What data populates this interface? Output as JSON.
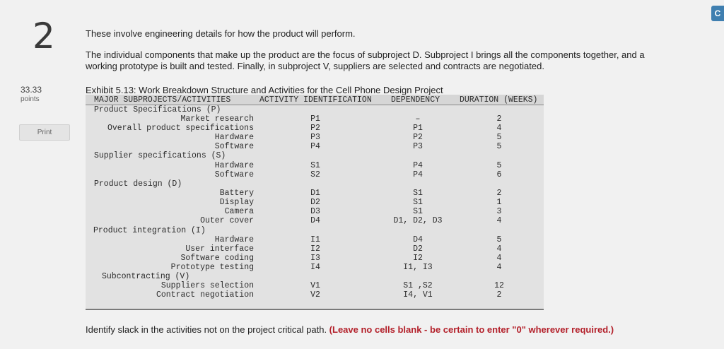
{
  "question": {
    "number": "2",
    "points_value": "33.33",
    "points_label": "points",
    "print_label": "Print",
    "corner_button_label": "C"
  },
  "intro": {
    "line1": "These involve engineering details for how the product will perform.",
    "line2": "The individual components that make up the product are the focus of subproject D. Subproject I brings all the components together, and a working prototype is built and tested. Finally, in subproject V, suppliers are selected and contracts are negotiated."
  },
  "exhibit": {
    "title": "Exhibit 5.13: Work Breakdown Structure and Activities for the Cell Phone Design Project",
    "headers": {
      "activities": "MAJOR SUBPROJECTS/ACTIVITIES",
      "id": "ACTIVITY IDENTIFICATION",
      "dependency": "DEPENDENCY",
      "duration": "DURATION (WEEKS)"
    },
    "subprojects": [
      {
        "name": "Product Specifications (P)"
      },
      {
        "name": "Supplier specifications (S)"
      },
      {
        "name": "Product design (D)"
      },
      {
        "name": "Product integration (I)"
      },
      {
        "name": "Subcontracting (V)"
      }
    ],
    "activities": [
      {
        "name": "Market research",
        "id": "P1",
        "dependency": "–",
        "duration": "2"
      },
      {
        "name": "Overall product specifications",
        "id": "P2",
        "dependency": "P1",
        "duration": "4"
      },
      {
        "name": "Hardware",
        "id": "P3",
        "dependency": "P2",
        "duration": "5"
      },
      {
        "name": "Software",
        "id": "P4",
        "dependency": "P3",
        "duration": "5"
      },
      {
        "name": "Hardware",
        "id": "S1",
        "dependency": "P4",
        "duration": "5"
      },
      {
        "name": "Software",
        "id": "S2",
        "dependency": "P4",
        "duration": "6"
      },
      {
        "name": "Battery",
        "id": "D1",
        "dependency": "S1",
        "duration": "2"
      },
      {
        "name": "Display",
        "id": "D2",
        "dependency": "S1",
        "duration": "1"
      },
      {
        "name": "Camera",
        "id": "D3",
        "dependency": "S1",
        "duration": "3"
      },
      {
        "name": "Outer cover",
        "id": "D4",
        "dependency": "D1, D2, D3",
        "duration": "4"
      },
      {
        "name": "Hardware",
        "id": "I1",
        "dependency": "D4",
        "duration": "5"
      },
      {
        "name": "User interface",
        "id": "I2",
        "dependency": "D2",
        "duration": "4"
      },
      {
        "name": "Software coding",
        "id": "I3",
        "dependency": "I2",
        "duration": "4"
      },
      {
        "name": "Prototype testing",
        "id": "I4",
        "dependency": "I1, I3",
        "duration": "4"
      },
      {
        "name": "Suppliers selection",
        "id": "V1",
        "dependency": "S1 ,S2",
        "duration": "12"
      },
      {
        "name": "Contract negotiation",
        "id": "V2",
        "dependency": "I4, V1",
        "duration": "2"
      }
    ]
  },
  "prompt": {
    "text": "Identify slack in the activities not on the project critical path. ",
    "hint": "(Leave no cells blank - be certain to enter \"0\" wherever required.)"
  }
}
